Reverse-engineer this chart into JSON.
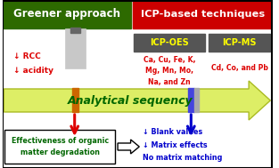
{
  "fig_width": 3.13,
  "fig_height": 1.89,
  "dpi": 100,
  "green_header_text": "Greener approach",
  "green_header_bg": "#2d6a00",
  "red_header_text": "ICP-based techniques",
  "red_header_bg": "#cc0000",
  "icp_oes_text": "ICP-OES",
  "icp_oes_bg": "#555555",
  "icp_ms_text": "ICP-MS",
  "icp_ms_bg": "#555555",
  "icp_oes_elements": "Ca, Cu, Fe, K,\nMg, Mn, Mo,\nNa, and Zn",
  "icp_ms_elements": "Cd, Co, and Pb",
  "left_bullets": "↓ RCC\n↓ acidity",
  "arrow_label": "Analytical sequency",
  "arrow_color": "#ddee66",
  "arrow_outline": "#aabb22",
  "bottom_left_text": "Effectiveness of organic\nmatter degradation",
  "bottom_right_bullets": "↓ Blank values\n↓ Matrix effects\nNo matrix matching",
  "red_color": "#dd0000",
  "blue_color": "#0000cc",
  "yellow_text": "#ffff00",
  "white": "#ffffff",
  "black": "#000000",
  "green_text": "#006600",
  "orange_bar": "#cc6600"
}
